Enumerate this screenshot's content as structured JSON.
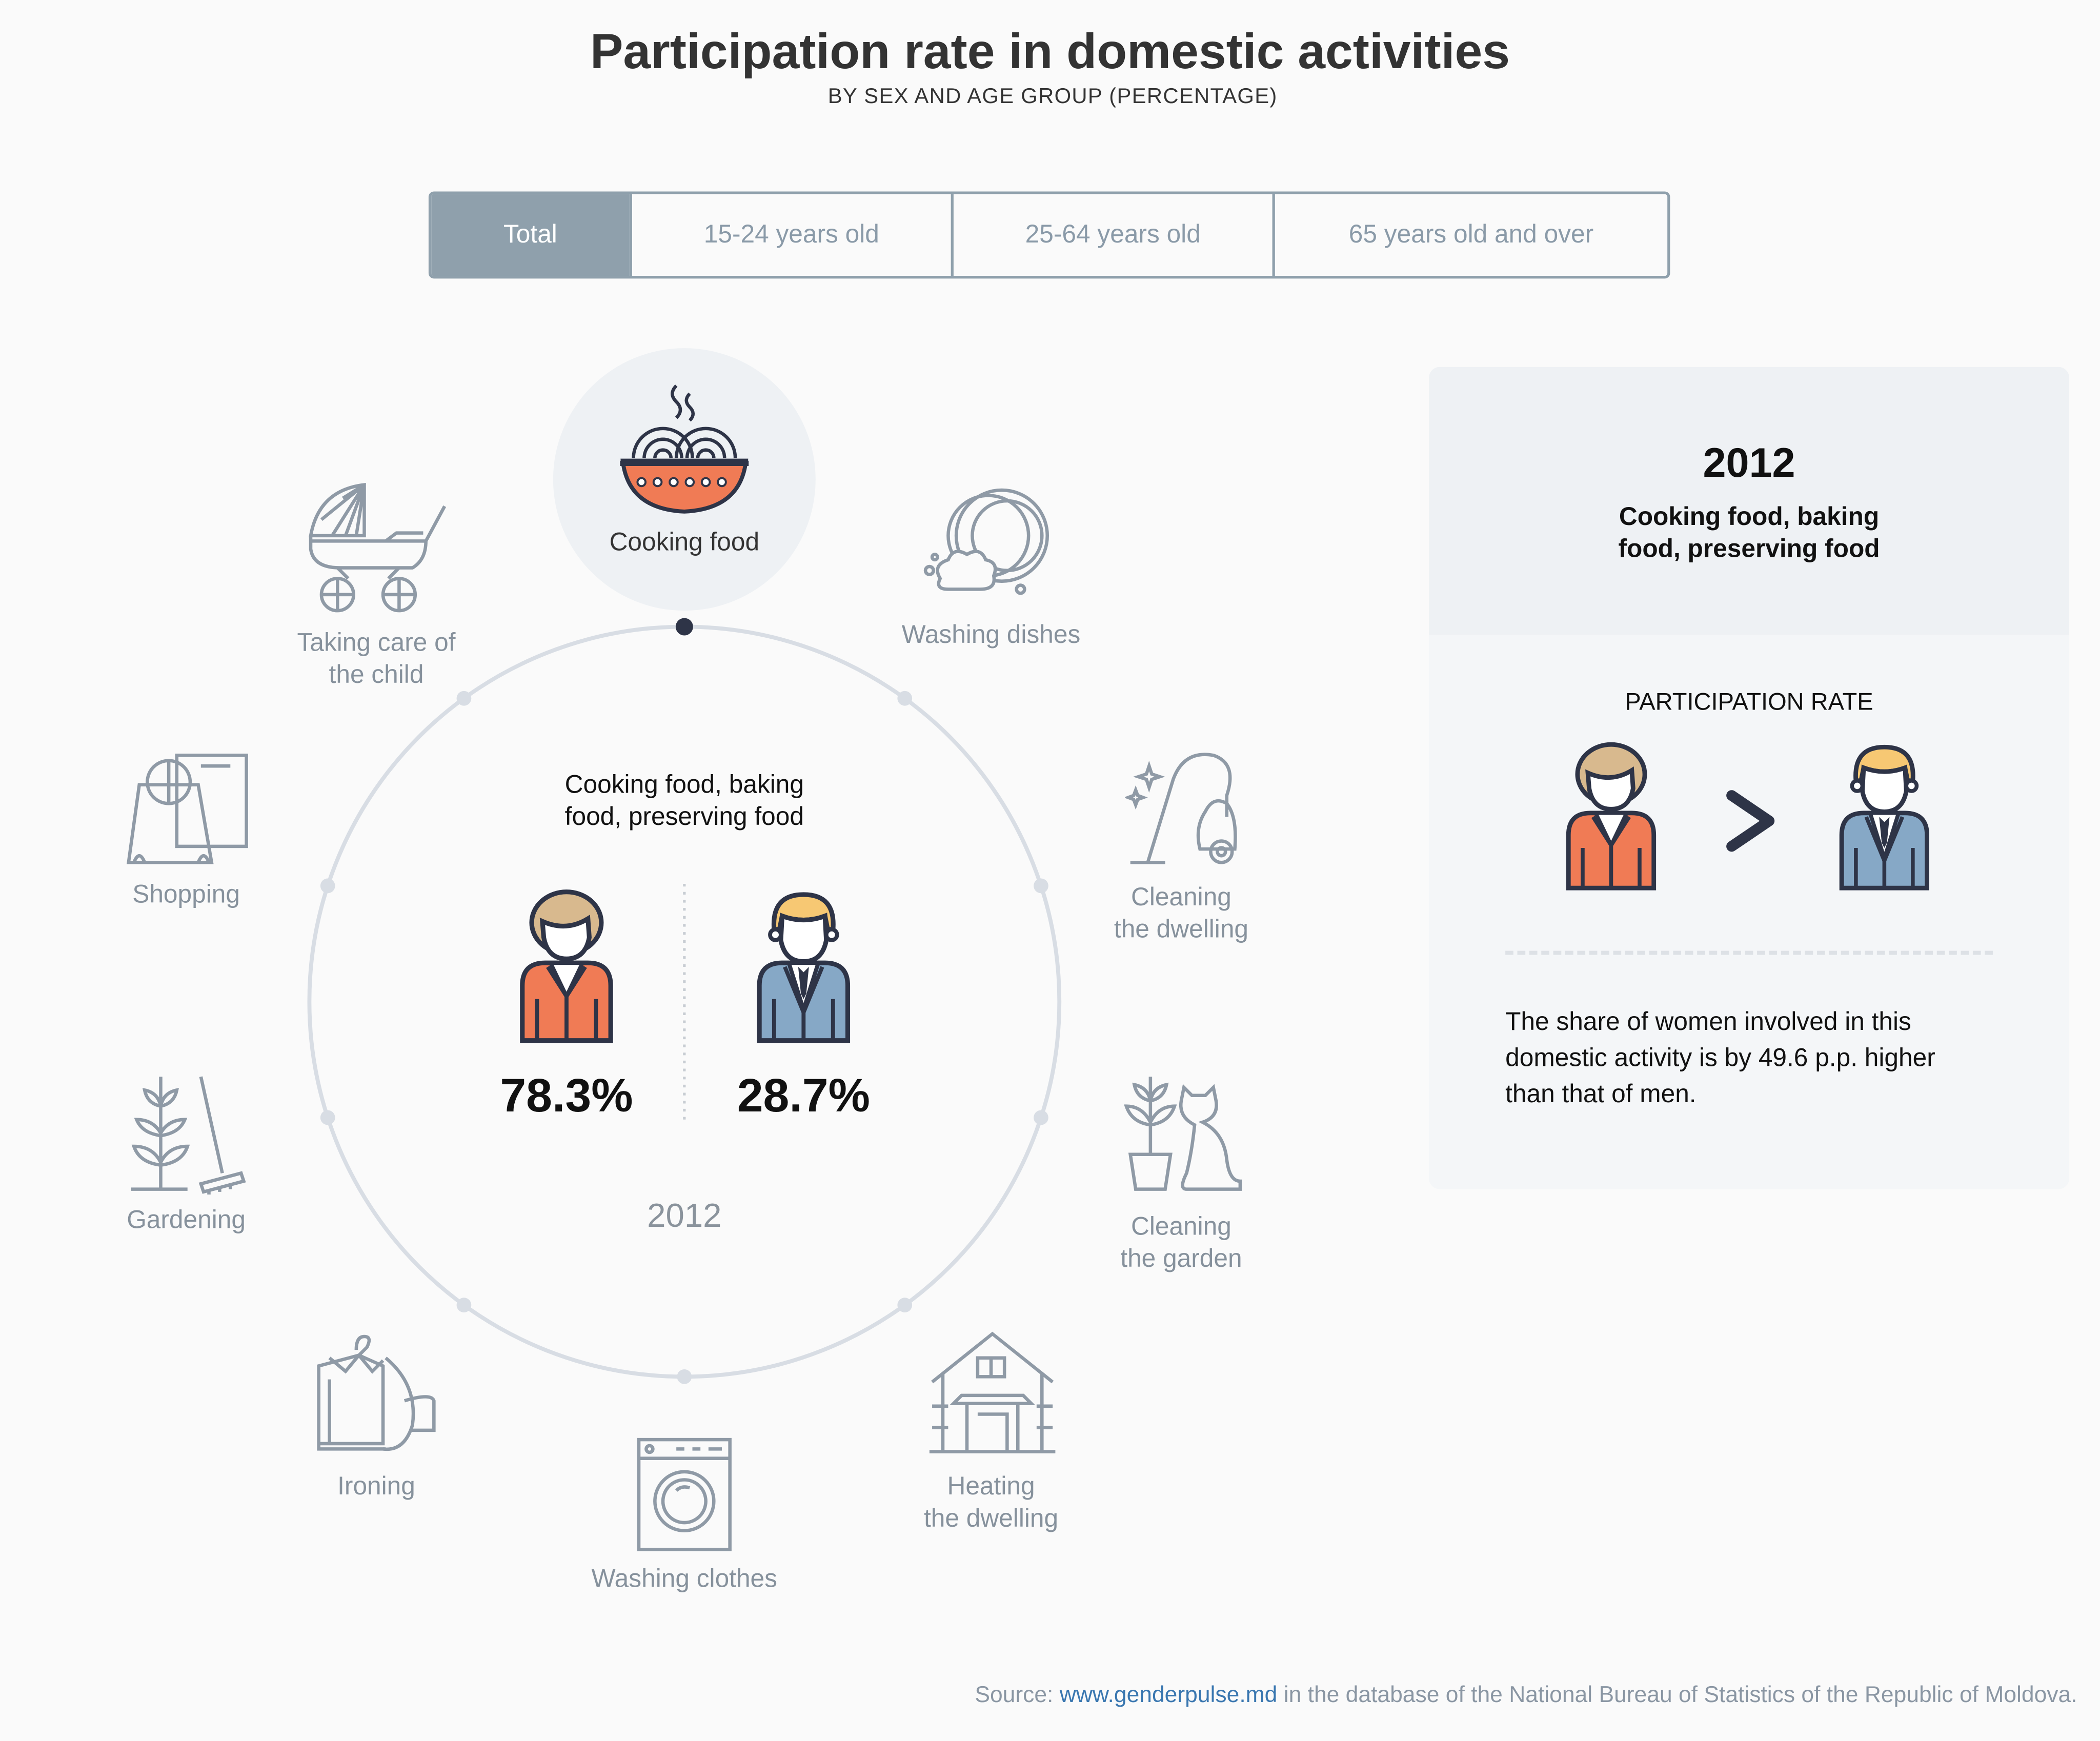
{
  "header": {
    "title": "Participation rate in domestic activities",
    "subtitle": "BY SEX AND AGE GROUP (PERCENTAGE)"
  },
  "tabs": [
    {
      "label": "Total",
      "active": true
    },
    {
      "label": "15-24 years old",
      "active": false
    },
    {
      "label": "25-64 years old",
      "active": false
    },
    {
      "label": "65 years old and over",
      "active": false
    }
  ],
  "activities": {
    "cooking": {
      "label": "Cooking food",
      "icon": "cooking-bowl-icon",
      "selected": true
    },
    "dishes": {
      "label": "Washing dishes",
      "icon": "dishes-icon"
    },
    "dwelling": {
      "line1": "Cleaning",
      "line2": "the dwelling",
      "icon": "vacuum-icon"
    },
    "garden": {
      "line1": "Cleaning",
      "line2": "the garden",
      "icon": "plant-cat-icon"
    },
    "heating": {
      "line1": "Heating",
      "line2": "the dwelling",
      "icon": "house-icon"
    },
    "clothes": {
      "label": "Washing clothes",
      "icon": "washing-machine-icon"
    },
    "ironing": {
      "label": "Ironing",
      "icon": "shirt-icon"
    },
    "gardening": {
      "label": "Gardening",
      "icon": "rake-icon"
    },
    "shopping": {
      "label": "Shopping",
      "icon": "shopping-bag-icon"
    },
    "child": {
      "line1": "Taking care of",
      "line2": "the child",
      "icon": "stroller-icon"
    }
  },
  "center": {
    "line1": "Cooking food, baking",
    "line2": "food, preserving food",
    "women_pct": "78.3%",
    "men_pct": "28.7%",
    "year": "2012",
    "women_value": 78.3,
    "men_value": 28.7
  },
  "panel": {
    "year": "2012",
    "line1": "Cooking food, baking",
    "line2": "food, preserving food",
    "rate_label": "PARTICIPATION RATE",
    "comparison": "greater-than-chevron-icon",
    "text1": "The share of women involved in this",
    "text2": "domestic activity is by 49.6 p.p. higher",
    "text3": "than that of men."
  },
  "source": {
    "prefix": "Source:",
    "link": "www.genderpulse.md",
    "suffix": "in the database of the National Bureau of Statistics of the Republic of Moldova."
  },
  "colors": {
    "women": "#f07b55",
    "men": "#86a8c6",
    "women_hair": "#d8b98e",
    "men_hair": "#f7c873",
    "outline": "#2e3447",
    "tab_active": "#8fa0ac",
    "icon_gray": "#8f9aa6",
    "link": "#3a77b0"
  }
}
